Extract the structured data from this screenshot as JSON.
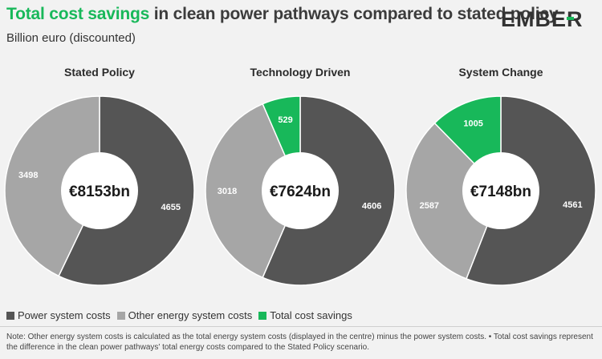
{
  "header": {
    "title_highlight": "Total cost savings",
    "title_rest": " in clean power pathways compared to stated policy",
    "subtitle": "Billion euro (discounted)",
    "logo_text": "EMBER"
  },
  "colors": {
    "power": "#555555",
    "other": "#a6a6a6",
    "savings": "#18b85a",
    "accent": "#18b85a"
  },
  "legend": {
    "power_label": "Power system costs",
    "other_label": "Other energy system costs",
    "savings_label": "Total cost savings"
  },
  "note": "Note: Other energy system costs is calculated as the total energy system costs (displayed in the centre) minus the power system costs. • Total cost savings represent the difference in the clean power pathways' total energy costs compared to the Stated Policy scenario.",
  "chart_data": [
    {
      "type": "pie",
      "title": "Stated Policy",
      "center_label": "€8153bn",
      "slices": [
        {
          "name": "Power system costs",
          "value": 4655,
          "label": "4655"
        },
        {
          "name": "Other energy system costs",
          "value": 3498,
          "label": "3498"
        }
      ]
    },
    {
      "type": "pie",
      "title": "Technology Driven",
      "center_label": "€7624bn",
      "slices": [
        {
          "name": "Power system costs",
          "value": 4606,
          "label": "4606"
        },
        {
          "name": "Other energy system costs",
          "value": 3018,
          "label": "3018"
        },
        {
          "name": "Total cost savings",
          "value": 529,
          "label": "529"
        }
      ]
    },
    {
      "type": "pie",
      "title": "System Change",
      "center_label": "€7148bn",
      "slices": [
        {
          "name": "Power system costs",
          "value": 4561,
          "label": "4561"
        },
        {
          "name": "Other energy system costs",
          "value": 2587,
          "label": "2587"
        },
        {
          "name": "Total cost savings",
          "value": 1005,
          "label": "1005"
        }
      ]
    }
  ]
}
